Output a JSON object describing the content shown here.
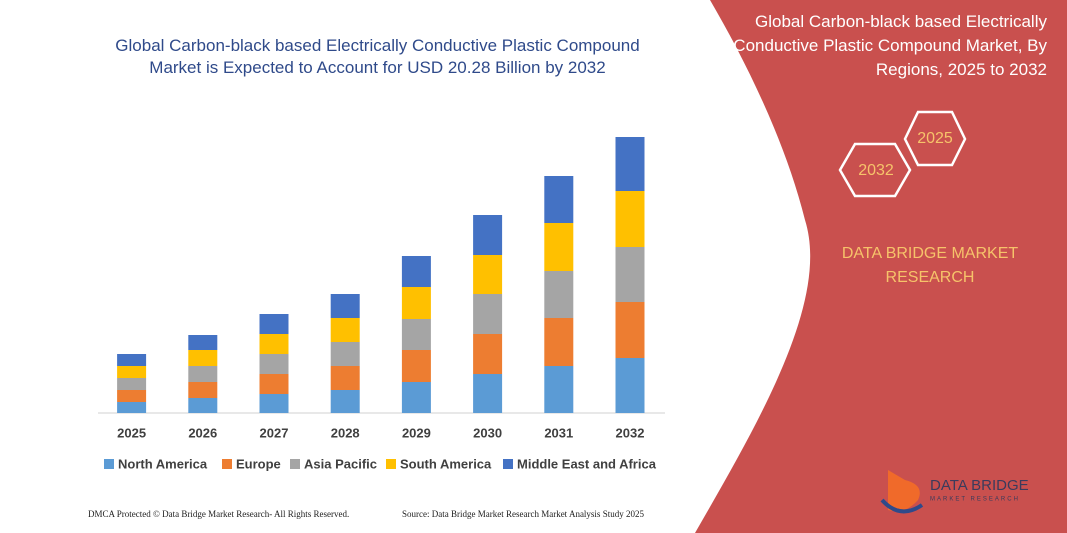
{
  "chart_data": {
    "type": "stacked-bar",
    "title": "Global Carbon-black based Electrically Conductive Plastic Compound Market is Expected to Account for USD 20.28 Billion by 2032",
    "categories": [
      "2025",
      "2026",
      "2027",
      "2028",
      "2029",
      "2030",
      "2031",
      "2032"
    ],
    "series": [
      {
        "name": "North America",
        "color": "#5b9bd5",
        "values": [
          11,
          15,
          19,
          23,
          31,
          39,
          47,
          55
        ]
      },
      {
        "name": "Europe",
        "color": "#ed7d31",
        "values": [
          12,
          16,
          20,
          24,
          32,
          40,
          48,
          56
        ]
      },
      {
        "name": "Asia Pacific",
        "color": "#a5a5a5",
        "values": [
          12,
          16,
          20,
          24,
          31,
          40,
          47,
          55
        ]
      },
      {
        "name": "South America",
        "color": "#ffc000",
        "values": [
          12,
          16,
          20,
          24,
          32,
          39,
          48,
          56
        ]
      },
      {
        "name": "Middle East and Africa",
        "color": "#4472c4",
        "values": [
          12,
          15,
          20,
          24,
          31,
          40,
          47,
          54
        ]
      }
    ]
  },
  "panel": {
    "title": "Global Carbon-black based Electrically Conductive Plastic Compound Market, By Regions, 2025 to 2032",
    "hexagons": [
      "2025",
      "2032"
    ],
    "brand": "DATA BRIDGE MARKET RESEARCH"
  },
  "logo": {
    "name": "DATA BRIDGE",
    "tagline": "MARKET RESEARCH"
  },
  "footer": {
    "dmca": "DMCA Protected © Data Bridge Market Research- All Rights Reserved.",
    "source": "Source: Data Bridge Market Research Market Analysis Study 2025"
  }
}
